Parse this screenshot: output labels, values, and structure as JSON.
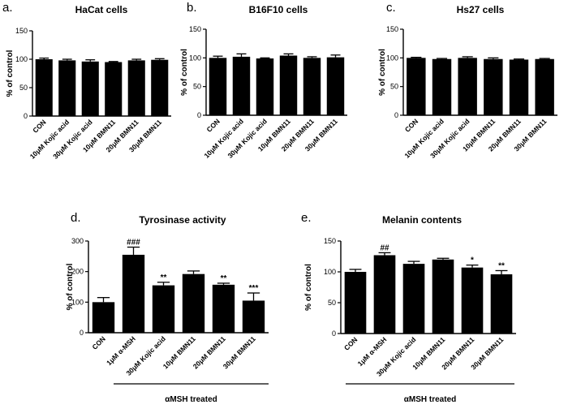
{
  "chart_data": [
    {
      "panel": "a.",
      "title": "HaCat cells",
      "type": "bar",
      "ylabel": "% of control",
      "ylim": [
        0,
        150
      ],
      "yticks": [
        0,
        50,
        100,
        150
      ],
      "categories": [
        "CON",
        "10μM Kojic acid",
        "30μM Kojic acid",
        "10μM BMN11",
        "20μM BMN11",
        "30μM BMN11"
      ],
      "values": [
        100,
        98,
        96,
        95,
        98,
        99
      ],
      "errors": [
        2,
        2,
        3,
        1,
        2,
        2
      ],
      "annotations": [
        "",
        "",
        "",
        "",
        "",
        ""
      ]
    },
    {
      "panel": "b.",
      "title": "B16F10 cells",
      "type": "bar",
      "ylabel": "% of control",
      "ylim": [
        0,
        150
      ],
      "yticks": [
        0,
        50,
        100,
        150
      ],
      "categories": [
        "CON",
        "10μM Kojic acid",
        "30μM Kojic acid",
        "10μM BMN11",
        "20μM BMN11",
        "30μM BMN11"
      ],
      "values": [
        100,
        102,
        99,
        104,
        100,
        101
      ],
      "errors": [
        3,
        5,
        1,
        3,
        2,
        4
      ],
      "annotations": [
        "",
        "",
        "",
        "",
        "",
        ""
      ]
    },
    {
      "panel": "c.",
      "title": "Hs27 cells",
      "type": "bar",
      "ylabel": "% of control",
      "ylim": [
        0,
        150
      ],
      "yticks": [
        0,
        50,
        100,
        150
      ],
      "categories": [
        "CON",
        "10μM Kojic acid",
        "30μM Kojic acid",
        "10μM BMN11",
        "20μM BMN11",
        "30μM BMN11"
      ],
      "values": [
        100,
        98,
        100,
        98,
        97,
        98
      ],
      "errors": [
        1,
        1,
        2,
        2,
        1,
        1
      ],
      "annotations": [
        "",
        "",
        "",
        "",
        "",
        ""
      ]
    },
    {
      "panel": "d.",
      "title": "Tyrosinase activity",
      "type": "bar",
      "ylabel": "% of control",
      "ylim": [
        0,
        300
      ],
      "yticks": [
        0,
        100,
        200,
        300
      ],
      "categories": [
        "CON",
        "1μM α-MSH",
        "30μM Kojic acid",
        "10μM BMN11",
        "20μM BMN11",
        "30μM BMN11"
      ],
      "values": [
        100,
        255,
        155,
        192,
        157,
        105
      ],
      "errors": [
        15,
        25,
        10,
        10,
        5,
        25
      ],
      "annotations": [
        "",
        "###",
        "**",
        "",
        "**",
        "***"
      ],
      "bracket_label": "αMSH treated"
    },
    {
      "panel": "e.",
      "title": "Melanin contents",
      "type": "bar",
      "ylabel": "% of control",
      "ylim": [
        0,
        150
      ],
      "yticks": [
        0,
        50,
        100,
        150
      ],
      "categories": [
        "CON",
        "1μM α-MSH",
        "30μM Kojic acid",
        "10μM BMN11",
        "20μM BMN11",
        "30μM BMN11"
      ],
      "values": [
        100,
        127,
        113,
        120,
        107,
        96
      ],
      "errors": [
        4,
        4,
        4,
        2,
        4,
        6
      ],
      "annotations": [
        "",
        "##",
        "",
        "",
        "*",
        "**"
      ],
      "bracket_label": "αMSH treated"
    }
  ]
}
